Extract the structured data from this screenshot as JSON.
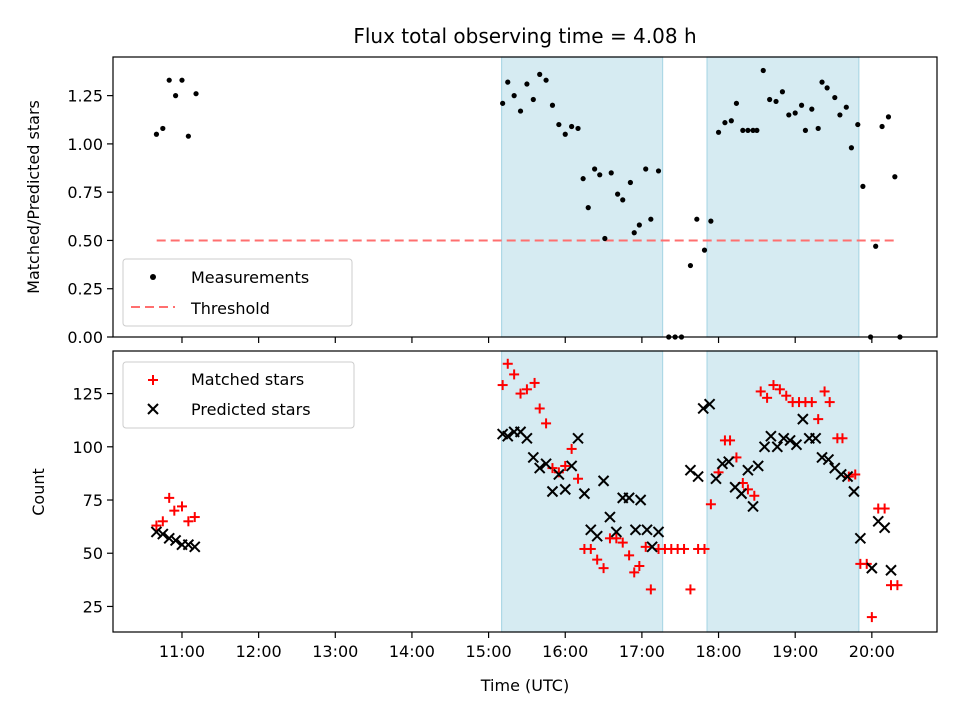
{
  "colors": {
    "measurement": "#000000",
    "threshold": "#ff6f6f",
    "matched": "#ff0000",
    "predicted": "#000000",
    "window": "#add8e6"
  },
  "chart_data": [
    {
      "type": "scatter",
      "title": "Flux total observing time = 4.08 h",
      "xlabel": "",
      "ylabel": "Matched/Predicted stars",
      "xlim_hours": [
        10.1,
        20.85
      ],
      "ylim": [
        0,
        1.45
      ],
      "yticks": [
        "0.00",
        "0.25",
        "0.50",
        "0.75",
        "1.00",
        "1.25"
      ],
      "xtick_labels_shown": false,
      "shaded_windows": [
        [
          15.17,
          17.27
        ],
        [
          17.85,
          19.83
        ]
      ],
      "threshold": 0.5,
      "threshold_x_range": [
        10.67,
        20.35
      ],
      "legend": {
        "position": "lower left",
        "entries": [
          "Measurements",
          "Threshold"
        ]
      },
      "series": [
        {
          "name": "Measurements",
          "marker": "dot",
          "points": [
            [
              "10:40",
              1.05
            ],
            [
              "10:45",
              1.08
            ],
            [
              "10:50",
              1.33
            ],
            [
              "10:55",
              1.25
            ],
            [
              "11:00",
              1.33
            ],
            [
              "11:05",
              1.04
            ],
            [
              "11:11",
              1.26
            ],
            [
              "15:11",
              1.21
            ],
            [
              "15:15",
              1.32
            ],
            [
              "15:20",
              1.25
            ],
            [
              "15:25",
              1.17
            ],
            [
              "15:30",
              1.31
            ],
            [
              "15:35",
              1.23
            ],
            [
              "15:40",
              1.36
            ],
            [
              "15:45",
              1.33
            ],
            [
              "15:50",
              1.2
            ],
            [
              "15:55",
              1.1
            ],
            [
              "16:00",
              1.05
            ],
            [
              "16:05",
              1.09
            ],
            [
              "16:10",
              1.08
            ],
            [
              "16:14",
              0.82
            ],
            [
              "16:18",
              0.67
            ],
            [
              "16:23",
              0.87
            ],
            [
              "16:27",
              0.84
            ],
            [
              "16:31",
              0.51
            ],
            [
              "16:36",
              0.85
            ],
            [
              "16:41",
              0.74
            ],
            [
              "16:45",
              0.71
            ],
            [
              "16:51",
              0.8
            ],
            [
              "16:54",
              0.54
            ],
            [
              "16:58",
              0.58
            ],
            [
              "17:03",
              0.87
            ],
            [
              "17:07",
              0.61
            ],
            [
              "17:13",
              0.86
            ],
            [
              "17:21",
              0.0
            ],
            [
              "17:26",
              0.0
            ],
            [
              "17:31",
              0.0
            ],
            [
              "17:38",
              0.37
            ],
            [
              "17:43",
              0.61
            ],
            [
              "17:49",
              0.45
            ],
            [
              "17:54",
              0.6
            ],
            [
              "18:00",
              1.06
            ],
            [
              "18:05",
              1.11
            ],
            [
              "18:10",
              1.12
            ],
            [
              "18:14",
              1.21
            ],
            [
              "18:19",
              1.07
            ],
            [
              "18:23",
              1.07
            ],
            [
              "18:27",
              1.07
            ],
            [
              "18:30",
              1.07
            ],
            [
              "18:35",
              1.38
            ],
            [
              "18:40",
              1.23
            ],
            [
              "18:45",
              1.22
            ],
            [
              "18:50",
              1.27
            ],
            [
              "18:55",
              1.15
            ],
            [
              "19:00",
              1.16
            ],
            [
              "19:05",
              1.2
            ],
            [
              "19:08",
              1.07
            ],
            [
              "19:13",
              1.18
            ],
            [
              "19:18",
              1.08
            ],
            [
              "19:21",
              1.32
            ],
            [
              "19:25",
              1.29
            ],
            [
              "19:31",
              1.24
            ],
            [
              "19:35",
              1.15
            ],
            [
              "19:40",
              1.19
            ],
            [
              "19:44",
              0.98
            ],
            [
              "19:49",
              1.1
            ],
            [
              "19:53",
              0.78
            ],
            [
              "19:59",
              0.0
            ],
            [
              "20:03",
              0.47
            ],
            [
              "20:08",
              1.09
            ],
            [
              "20:13",
              1.14
            ],
            [
              "20:18",
              0.83
            ],
            [
              "20:22",
              0.0
            ]
          ]
        }
      ]
    },
    {
      "type": "scatter",
      "title": "",
      "xlabel": "Time (UTC)",
      "ylabel": "Count",
      "xlim_hours": [
        10.1,
        20.85
      ],
      "ylim": [
        13,
        145
      ],
      "yticks": [
        "25",
        "50",
        "75",
        "100",
        "125"
      ],
      "xticks": [
        "11:00",
        "12:00",
        "13:00",
        "14:00",
        "15:00",
        "16:00",
        "17:00",
        "18:00",
        "19:00",
        "20:00"
      ],
      "shaded_windows": [
        [
          15.17,
          17.27
        ],
        [
          17.85,
          19.83
        ]
      ],
      "legend": {
        "position": "upper left",
        "entries": [
          "Matched stars",
          "Predicted stars"
        ]
      },
      "series": [
        {
          "name": "Matched stars",
          "marker": "plus",
          "points": [
            [
              "10:40",
              63
            ],
            [
              "10:45",
              65
            ],
            [
              "10:50",
              76
            ],
            [
              "10:54",
              70
            ],
            [
              "11:00",
              72
            ],
            [
              "11:05",
              65
            ],
            [
              "11:10",
              67
            ],
            [
              "15:11",
              129
            ],
            [
              "15:15",
              139
            ],
            [
              "15:20",
              134
            ],
            [
              "15:25",
              125
            ],
            [
              "15:30",
              127
            ],
            [
              "15:36",
              130
            ],
            [
              "15:40",
              118
            ],
            [
              "15:45",
              111
            ],
            [
              "15:50",
              90
            ],
            [
              "15:55",
              88
            ],
            [
              "16:00",
              91
            ],
            [
              "16:05",
              99
            ],
            [
              "16:10",
              85
            ],
            [
              "16:15",
              52
            ],
            [
              "16:20",
              52
            ],
            [
              "16:25",
              47
            ],
            [
              "16:30",
              43
            ],
            [
              "16:35",
              57
            ],
            [
              "16:40",
              57
            ],
            [
              "16:45",
              55
            ],
            [
              "16:50",
              49
            ],
            [
              "16:54",
              41
            ],
            [
              "16:58",
              44
            ],
            [
              "17:03",
              53
            ],
            [
              "17:07",
              33
            ],
            [
              "17:13",
              52
            ],
            [
              "17:18",
              52
            ],
            [
              "17:23",
              52
            ],
            [
              "17:28",
              52
            ],
            [
              "17:33",
              52
            ],
            [
              "17:38",
              33
            ],
            [
              "17:44",
              52
            ],
            [
              "17:49",
              52
            ],
            [
              "17:54",
              73
            ],
            [
              "18:00",
              88
            ],
            [
              "18:05",
              103
            ],
            [
              "18:09",
              103
            ],
            [
              "18:14",
              95
            ],
            [
              "18:19",
              83
            ],
            [
              "18:23",
              80
            ],
            [
              "18:28",
              77
            ],
            [
              "18:33",
              126
            ],
            [
              "18:38",
              123
            ],
            [
              "18:43",
              129
            ],
            [
              "18:48",
              127
            ],
            [
              "18:53",
              124
            ],
            [
              "18:58",
              121
            ],
            [
              "19:03",
              121
            ],
            [
              "19:08",
              121
            ],
            [
              "19:13",
              121
            ],
            [
              "19:18",
              113
            ],
            [
              "19:23",
              126
            ],
            [
              "19:27",
              121
            ],
            [
              "19:33",
              104
            ],
            [
              "19:37",
              104
            ],
            [
              "19:42",
              86
            ],
            [
              "19:47",
              87
            ],
            [
              "19:51",
              45
            ],
            [
              "19:56",
              45
            ],
            [
              "20:00",
              20
            ],
            [
              "20:05",
              71
            ],
            [
              "20:10",
              71
            ],
            [
              "20:15",
              35
            ],
            [
              "20:20",
              35
            ]
          ]
        },
        {
          "name": "Predicted stars",
          "marker": "x",
          "points": [
            [
              "10:40",
              60
            ],
            [
              "10:45",
              59
            ],
            [
              "10:50",
              57
            ],
            [
              "10:55",
              56
            ],
            [
              "11:00",
              54
            ],
            [
              "11:05",
              54
            ],
            [
              "11:10",
              53
            ],
            [
              "15:11",
              106
            ],
            [
              "15:15",
              105
            ],
            [
              "15:20",
              107
            ],
            [
              "15:25",
              107
            ],
            [
              "15:30",
              104
            ],
            [
              "15:35",
              95
            ],
            [
              "15:40",
              90
            ],
            [
              "15:45",
              92
            ],
            [
              "15:50",
              79
            ],
            [
              "15:55",
              87
            ],
            [
              "16:00",
              80
            ],
            [
              "16:05",
              91
            ],
            [
              "16:10",
              104
            ],
            [
              "16:15",
              78
            ],
            [
              "16:20",
              61
            ],
            [
              "16:25",
              58
            ],
            [
              "16:30",
              84
            ],
            [
              "16:35",
              67
            ],
            [
              "16:40",
              60
            ],
            [
              "16:45",
              76
            ],
            [
              "16:50",
              76
            ],
            [
              "16:55",
              61
            ],
            [
              "16:59",
              75
            ],
            [
              "17:04",
              61
            ],
            [
              "17:08",
              53
            ],
            [
              "17:13",
              60
            ],
            [
              "17:38",
              89
            ],
            [
              "17:44",
              86
            ],
            [
              "17:48",
              118
            ],
            [
              "17:53",
              120
            ],
            [
              "17:58",
              85
            ],
            [
              "18:03",
              92
            ],
            [
              "18:08",
              93
            ],
            [
              "18:13",
              81
            ],
            [
              "18:18",
              78
            ],
            [
              "18:23",
              89
            ],
            [
              "18:27",
              72
            ],
            [
              "18:31",
              91
            ],
            [
              "18:36",
              100
            ],
            [
              "18:41",
              105
            ],
            [
              "18:46",
              100
            ],
            [
              "18:51",
              104
            ],
            [
              "18:56",
              103
            ],
            [
              "19:01",
              101
            ],
            [
              "19:06",
              113
            ],
            [
              "19:11",
              104
            ],
            [
              "19:16",
              104
            ],
            [
              "19:21",
              95
            ],
            [
              "19:26",
              94
            ],
            [
              "19:31",
              90
            ],
            [
              "19:36",
              87
            ],
            [
              "19:41",
              86
            ],
            [
              "19:46",
              79
            ],
            [
              "19:51",
              57
            ],
            [
              "20:00",
              43
            ],
            [
              "20:05",
              65
            ],
            [
              "20:10",
              62
            ],
            [
              "20:15",
              42
            ]
          ]
        }
      ]
    }
  ]
}
